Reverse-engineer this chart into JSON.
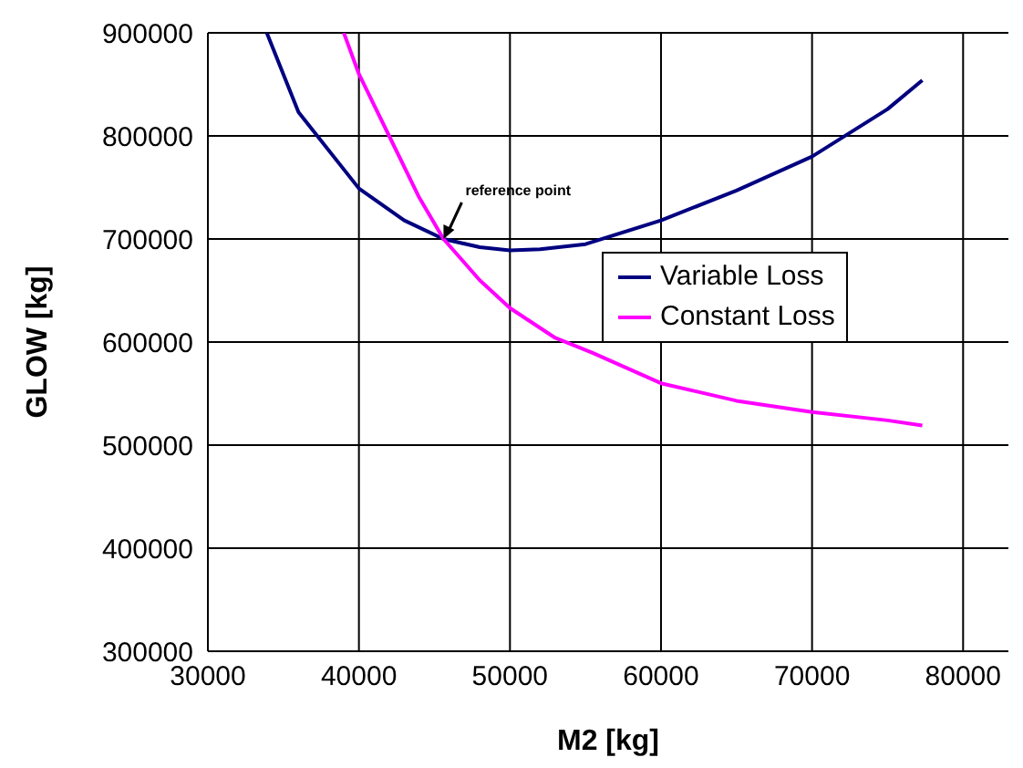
{
  "chart_data": {
    "type": "line",
    "xlabel": "M2 [kg]",
    "ylabel": "GLOW [kg]",
    "xlim": [
      30000,
      83000
    ],
    "xticks": [
      30000,
      40000,
      50000,
      60000,
      70000,
      80000
    ],
    "ylim": [
      300000,
      900000
    ],
    "yticks": [
      300000,
      400000,
      500000,
      600000,
      700000,
      800000,
      900000
    ],
    "grid": true,
    "legend": "right",
    "marker": "none",
    "line_style": "solid",
    "annotations": [
      {
        "text": "reference point",
        "x": 45600,
        "y": 700000
      }
    ],
    "series": [
      {
        "name": "Variable Loss",
        "color": "#000080",
        "x": [
          33900,
          36000,
          40000,
          43000,
          45600,
          48000,
          50000,
          52000,
          55000,
          60000,
          65000,
          70000,
          75000,
          77300
        ],
        "values": [
          900000,
          823000,
          749000,
          718000,
          700000,
          692000,
          689000,
          690000,
          695000,
          718000,
          747000,
          780000,
          826000,
          854000
        ]
      },
      {
        "name": "Constant Loss",
        "color": "#ff00ff",
        "x": [
          39000,
          40000,
          42000,
          44000,
          45600,
          48000,
          50000,
          53000,
          55400,
          60000,
          65000,
          70000,
          75000,
          77300
        ],
        "values": [
          900000,
          860000,
          800000,
          740000,
          700000,
          660000,
          633000,
          604000,
          590000,
          560000,
          543000,
          532000,
          524000,
          519000
        ]
      }
    ]
  }
}
